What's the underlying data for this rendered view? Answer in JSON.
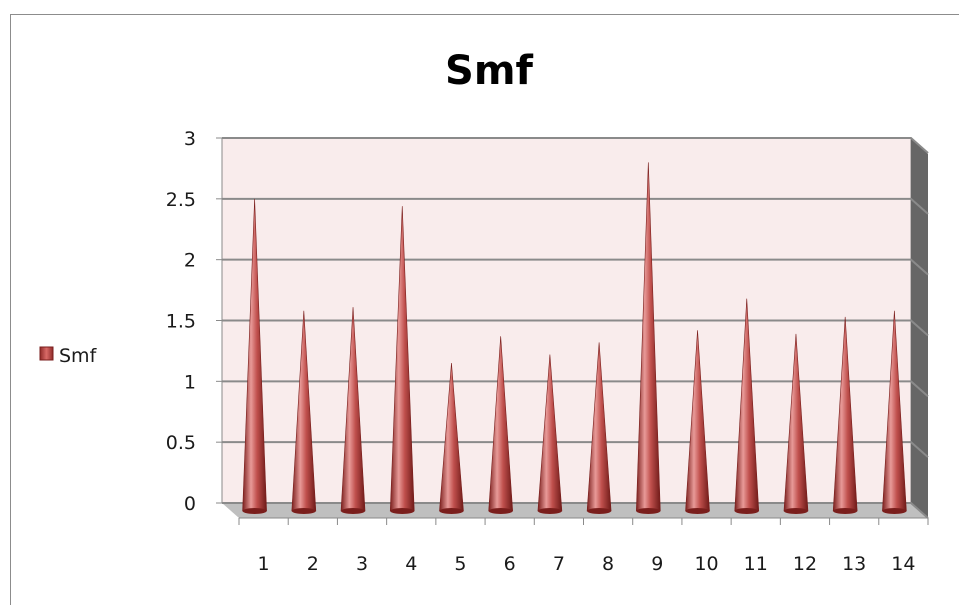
{
  "chart_data": {
    "type": "bar",
    "bar_shape": "cone",
    "style": "3d",
    "title": "Smf",
    "categories": [
      "1",
      "2",
      "3",
      "4",
      "5",
      "6",
      "7",
      "8",
      "9",
      "10",
      "11",
      "12",
      "13",
      "14"
    ],
    "series": [
      {
        "name": "Smf",
        "values": [
          2.5,
          1.58,
          1.61,
          2.44,
          1.15,
          1.37,
          1.22,
          1.32,
          2.8,
          1.42,
          1.68,
          1.39,
          1.53,
          1.58
        ]
      }
    ],
    "ylim": [
      0,
      3
    ],
    "yticks": [
      "0",
      "0.5",
      "1",
      "1.5",
      "2",
      "2.5",
      "3"
    ],
    "grid": true,
    "legend": "left",
    "colors": {
      "series": "#c0504d",
      "series_dark": "#7a1e1c",
      "series_light": "#e89a98",
      "plot_bg": "#f9ecec",
      "grid": "#8a8a8a",
      "side_wall": "#666666",
      "floor": "#bfbfbf"
    }
  }
}
